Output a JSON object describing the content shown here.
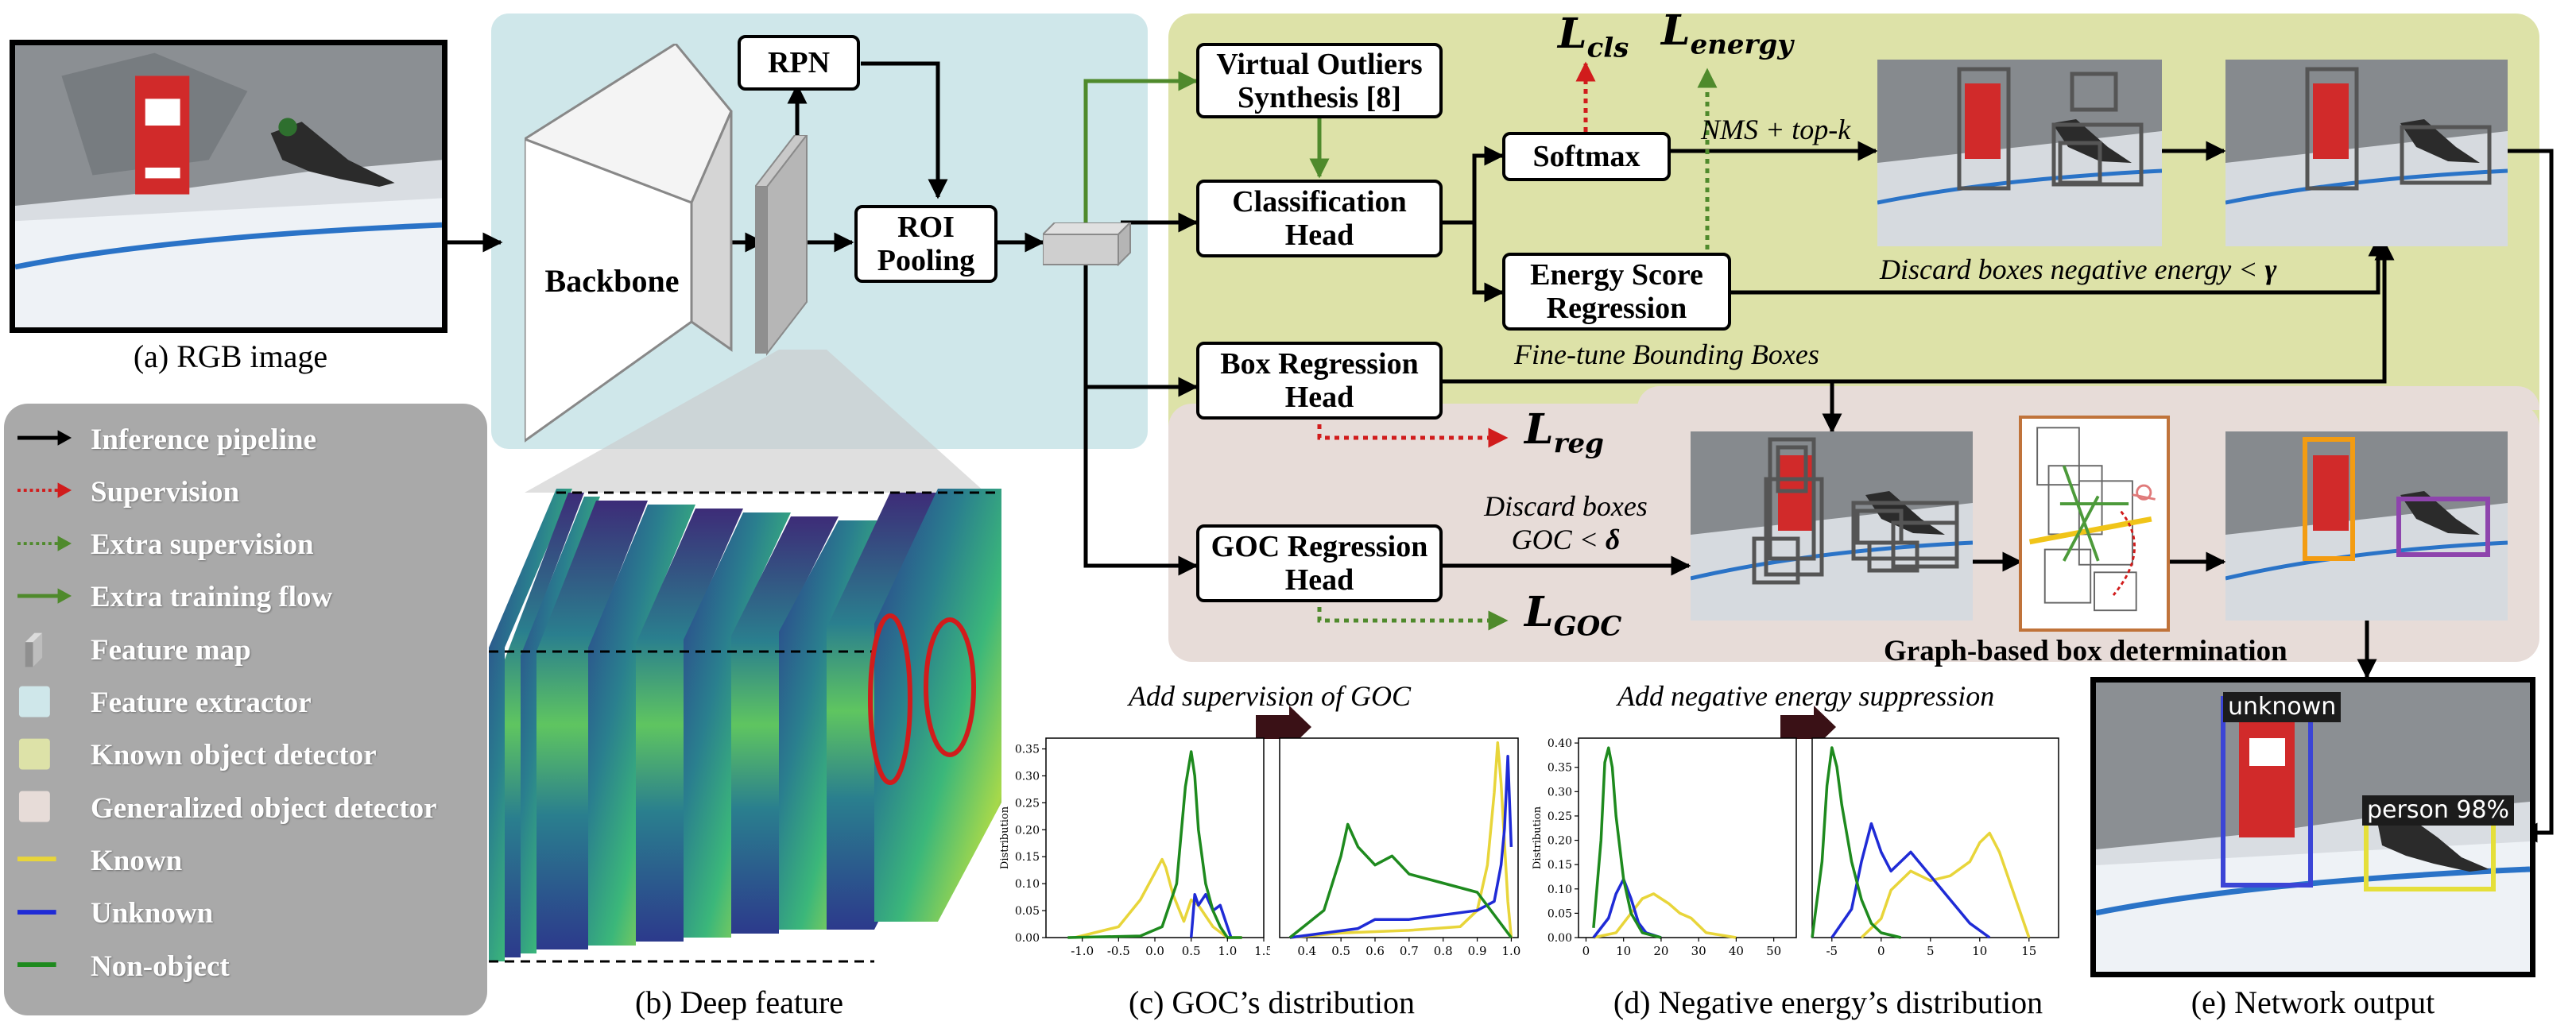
{
  "panels": {
    "rgb_caption": "(a) RGB image",
    "deep_caption": "(b) Deep feature",
    "goc_caption": "(c) GOC’s distribution",
    "energy_caption": "(d) Negative energy’s distribution",
    "output_caption": "(e) Network output"
  },
  "modules": {
    "backbone": "Backbone",
    "rpn": "RPN",
    "roi": "ROI\nPooling",
    "vos": "Virtual Outliers\nSynthesis [8]",
    "cls_head": "Classification\nHead",
    "softmax": "Softmax",
    "energy_head": "Energy Score\nRegression",
    "box_head": "Box Regression\nHead",
    "goc_head": "GOC Regression\nHead"
  },
  "losses": {
    "cls": {
      "base": "L",
      "sub": "cls"
    },
    "energy": {
      "base": "L",
      "sub": "energy"
    },
    "reg": {
      "base": "L",
      "sub": "reg"
    },
    "goc": {
      "base": "L",
      "sub": "GOC"
    }
  },
  "annotations": {
    "nms": "NMS + top-k",
    "discard_energy": "Discard boxes negative energy < ",
    "gamma": "γ",
    "finetune": "Fine-tune Bounding Boxes",
    "discard_goc_1": "Discard boxes",
    "discard_goc_2": "GOC < ",
    "delta": "δ",
    "graph_label": "Graph-based box determination",
    "add_goc": "Add supervision of GOC",
    "add_energy": "Add negative energy suppression"
  },
  "legend": [
    {
      "label": "Inference pipeline",
      "symbol": "black-arrow"
    },
    {
      "label": "Supervision",
      "symbol": "red-dotted-arrow"
    },
    {
      "label": "Extra supervision",
      "symbol": "green-dotted-arrow"
    },
    {
      "label": "Extra training flow",
      "symbol": "green-arrow"
    },
    {
      "label": "Feature map",
      "symbol": "feature-map-icon"
    },
    {
      "label": "Feature extractor",
      "symbol": "blue-swatch"
    },
    {
      "label": "Known object detector",
      "symbol": "olive-swatch"
    },
    {
      "label": "Generalized object detector",
      "symbol": "pink-swatch"
    },
    {
      "label": "Known",
      "symbol": "yellow-line"
    },
    {
      "label": "Unknown",
      "symbol": "blue-line"
    },
    {
      "label": "Non-object",
      "symbol": "green-line"
    }
  ],
  "output_labels": {
    "unknown": "unknown",
    "person": "person 98%"
  },
  "colors": {
    "feature_extractor": "#cfe7ea",
    "known_detector": "#dde2a8",
    "generalized_detector": "#e7dcd8",
    "legend_bg": "#a9a9a9",
    "known": "#e8d53a",
    "unknown": "#1f2bd6",
    "non_object": "#1e8a1e",
    "supervision": "#d11c1c",
    "extra": "#4f8a2c"
  },
  "chart_data": [
    {
      "type": "line",
      "id": "goc-before",
      "ylabel": "Distribution",
      "xlim": [
        -1.5,
        1.5
      ],
      "ylim": [
        0,
        0.37
      ],
      "xticks": [
        "-1.0",
        "-0.5",
        "0.0",
        "0.5",
        "1.0",
        "1.5"
      ],
      "yticks": [
        "0.00",
        "0.05",
        "0.10",
        "0.15",
        "0.20",
        "0.25",
        "0.30",
        "0.35"
      ],
      "series": [
        {
          "name": "Known",
          "x": [
            -1.1,
            -0.5,
            -0.2,
            0.0,
            0.1,
            0.15,
            0.25,
            0.4,
            0.5,
            0.6,
            0.8,
            1.0,
            1.2
          ],
          "y": [
            0.0,
            0.02,
            0.07,
            0.12,
            0.145,
            0.13,
            0.08,
            0.03,
            0.07,
            0.06,
            0.02,
            0.0,
            0.0
          ]
        },
        {
          "name": "Unknown",
          "x": [
            0.5,
            0.55,
            0.6,
            0.7,
            0.8,
            0.9,
            1.0,
            1.05
          ],
          "y": [
            0.0,
            0.08,
            0.06,
            0.08,
            0.05,
            0.06,
            0.02,
            0.0
          ]
        },
        {
          "name": "Non-object",
          "x": [
            -1.2,
            -0.2,
            0.1,
            0.3,
            0.42,
            0.5,
            0.55,
            0.6,
            0.7,
            0.8,
            0.9,
            1.0,
            1.2
          ],
          "y": [
            0.0,
            0.003,
            0.02,
            0.1,
            0.28,
            0.345,
            0.3,
            0.2,
            0.1,
            0.05,
            0.02,
            0.0,
            0.0
          ]
        }
      ]
    },
    {
      "type": "line",
      "id": "goc-after",
      "xlim": [
        0.32,
        1.02
      ],
      "ylim": [
        0,
        0.22
      ],
      "xticks": [
        "0.4",
        "0.5",
        "0.6",
        "0.7",
        "0.8",
        "0.9",
        "1.0"
      ],
      "yticks": [],
      "series": [
        {
          "name": "Known",
          "x": [
            0.35,
            0.5,
            0.7,
            0.85,
            0.9,
            0.93,
            0.95,
            0.96,
            0.97,
            0.99,
            1.0
          ],
          "y": [
            0.0,
            0.005,
            0.008,
            0.012,
            0.03,
            0.08,
            0.16,
            0.215,
            0.17,
            0.04,
            0.0
          ]
        },
        {
          "name": "Unknown",
          "x": [
            0.35,
            0.55,
            0.6,
            0.7,
            0.8,
            0.9,
            0.95,
            0.97,
            0.98,
            0.99,
            1.0
          ],
          "y": [
            0.0,
            0.01,
            0.02,
            0.02,
            0.025,
            0.03,
            0.04,
            0.08,
            0.12,
            0.2,
            0.1
          ]
        },
        {
          "name": "Non-object",
          "x": [
            0.35,
            0.45,
            0.5,
            0.52,
            0.55,
            0.6,
            0.65,
            0.7,
            0.8,
            0.9,
            0.96,
            1.0
          ],
          "y": [
            0.0,
            0.03,
            0.09,
            0.125,
            0.1,
            0.08,
            0.09,
            0.07,
            0.06,
            0.05,
            0.02,
            0.0
          ]
        }
      ]
    },
    {
      "type": "line",
      "id": "energy-before",
      "ylabel": "Distribution",
      "xlim": [
        -2,
        56
      ],
      "ylim": [
        0,
        0.41
      ],
      "xticks": [
        "0",
        "10",
        "20",
        "30",
        "40",
        "50"
      ],
      "yticks": [
        "0.00",
        "0.05",
        "0.10",
        "0.15",
        "0.20",
        "0.25",
        "0.30",
        "0.35",
        "0.40"
      ],
      "series": [
        {
          "name": "Known",
          "x": [
            2,
            8,
            12,
            15,
            18,
            20,
            22,
            25,
            28,
            32,
            40
          ],
          "y": [
            0.0,
            0.01,
            0.05,
            0.08,
            0.09,
            0.08,
            0.07,
            0.05,
            0.04,
            0.01,
            0.0
          ]
        },
        {
          "name": "Unknown",
          "x": [
            2,
            6,
            8,
            10,
            12,
            14,
            16,
            20
          ],
          "y": [
            0.0,
            0.04,
            0.09,
            0.12,
            0.08,
            0.03,
            0.01,
            0.0
          ]
        },
        {
          "name": "Non-object",
          "x": [
            2,
            4,
            5,
            6,
            7,
            8,
            10,
            12,
            15,
            20
          ],
          "y": [
            0.02,
            0.2,
            0.36,
            0.39,
            0.35,
            0.25,
            0.12,
            0.05,
            0.01,
            0.0
          ]
        }
      ]
    },
    {
      "type": "line",
      "id": "energy-after",
      "xlim": [
        -7,
        18
      ],
      "ylim": [
        0,
        0.21
      ],
      "xticks": [
        "-5",
        "0",
        "5",
        "10",
        "15"
      ],
      "yticks": [],
      "series": [
        {
          "name": "Known",
          "x": [
            -2,
            0,
            1,
            3,
            5,
            7,
            9,
            10,
            11,
            12,
            13,
            14,
            15
          ],
          "y": [
            0.0,
            0.02,
            0.05,
            0.07,
            0.06,
            0.065,
            0.08,
            0.1,
            0.11,
            0.09,
            0.06,
            0.03,
            0.0
          ]
        },
        {
          "name": "Unknown",
          "x": [
            -5,
            -3,
            -2,
            -1,
            0,
            1,
            3,
            5,
            7,
            9,
            11
          ],
          "y": [
            0.0,
            0.03,
            0.08,
            0.12,
            0.09,
            0.07,
            0.09,
            0.065,
            0.04,
            0.015,
            0.0
          ]
        },
        {
          "name": "Non-object",
          "x": [
            -7,
            -6,
            -5.5,
            -5,
            -4.5,
            -4,
            -3,
            -2,
            -1,
            0,
            2
          ],
          "y": [
            0.0,
            0.08,
            0.16,
            0.2,
            0.18,
            0.14,
            0.08,
            0.04,
            0.015,
            0.005,
            0.0
          ]
        }
      ]
    }
  ]
}
